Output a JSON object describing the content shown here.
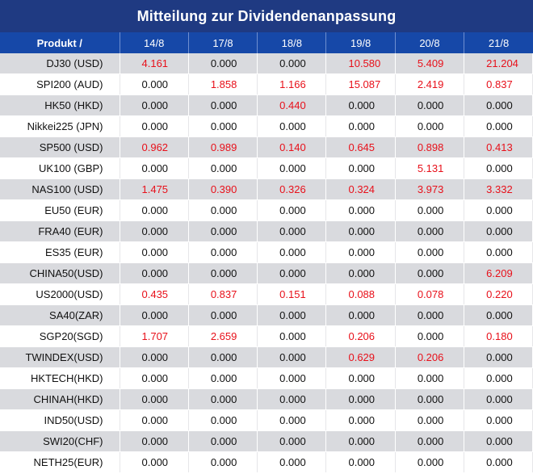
{
  "title": "Mitteilung zur Dividendenanpassung",
  "colors": {
    "title_bg": "#1f3a82",
    "header_bg": "#1648a8",
    "positive": "#e8101a",
    "stripe": "#d9dade"
  },
  "columns": [
    "Produkt /",
    "14/8",
    "17/8",
    "18/8",
    "19/8",
    "20/8",
    "21/8"
  ],
  "rows": [
    {
      "name": "DJ30 (USD)",
      "values": [
        "4.161",
        "0.000",
        "0.000",
        "10.580",
        "5.409",
        "21.204"
      ]
    },
    {
      "name": "SPI200 (AUD)",
      "values": [
        "0.000",
        "1.858",
        "1.166",
        "15.087",
        "2.419",
        "0.837"
      ]
    },
    {
      "name": "HK50 (HKD)",
      "values": [
        "0.000",
        "0.000",
        "0.440",
        "0.000",
        "0.000",
        "0.000"
      ]
    },
    {
      "name": "Nikkei225 (JPN)",
      "values": [
        "0.000",
        "0.000",
        "0.000",
        "0.000",
        "0.000",
        "0.000"
      ]
    },
    {
      "name": "SP500 (USD)",
      "values": [
        "0.962",
        "0.989",
        "0.140",
        "0.645",
        "0.898",
        "0.413"
      ]
    },
    {
      "name": "UK100 (GBP)",
      "values": [
        "0.000",
        "0.000",
        "0.000",
        "0.000",
        "5.131",
        "0.000"
      ]
    },
    {
      "name": "NAS100 (USD)",
      "values": [
        "1.475",
        "0.390",
        "0.326",
        "0.324",
        "3.973",
        "3.332"
      ]
    },
    {
      "name": "EU50 (EUR)",
      "values": [
        "0.000",
        "0.000",
        "0.000",
        "0.000",
        "0.000",
        "0.000"
      ]
    },
    {
      "name": "FRA40 (EUR)",
      "values": [
        "0.000",
        "0.000",
        "0.000",
        "0.000",
        "0.000",
        "0.000"
      ]
    },
    {
      "name": "ES35 (EUR)",
      "values": [
        "0.000",
        "0.000",
        "0.000",
        "0.000",
        "0.000",
        "0.000"
      ]
    },
    {
      "name": "CHINA50(USD)",
      "values": [
        "0.000",
        "0.000",
        "0.000",
        "0.000",
        "0.000",
        "6.209"
      ]
    },
    {
      "name": "US2000(USD)",
      "values": [
        "0.435",
        "0.837",
        "0.151",
        "0.088",
        "0.078",
        "0.220"
      ]
    },
    {
      "name": "SA40(ZAR)",
      "values": [
        "0.000",
        "0.000",
        "0.000",
        "0.000",
        "0.000",
        "0.000"
      ]
    },
    {
      "name": "SGP20(SGD)",
      "values": [
        "1.707",
        "2.659",
        "0.000",
        "0.206",
        "0.000",
        "0.180"
      ]
    },
    {
      "name": "TWINDEX(USD)",
      "values": [
        "0.000",
        "0.000",
        "0.000",
        "0.629",
        "0.206",
        "0.000"
      ]
    },
    {
      "name": "HKTECH(HKD)",
      "values": [
        "0.000",
        "0.000",
        "0.000",
        "0.000",
        "0.000",
        "0.000"
      ]
    },
    {
      "name": "CHINAH(HKD)",
      "values": [
        "0.000",
        "0.000",
        "0.000",
        "0.000",
        "0.000",
        "0.000"
      ]
    },
    {
      "name": "IND50(USD)",
      "values": [
        "0.000",
        "0.000",
        "0.000",
        "0.000",
        "0.000",
        "0.000"
      ]
    },
    {
      "name": "SWI20(CHF)",
      "values": [
        "0.000",
        "0.000",
        "0.000",
        "0.000",
        "0.000",
        "0.000"
      ]
    },
    {
      "name": "NETH25(EUR)",
      "values": [
        "0.000",
        "0.000",
        "0.000",
        "0.000",
        "0.000",
        "0.000"
      ]
    }
  ]
}
